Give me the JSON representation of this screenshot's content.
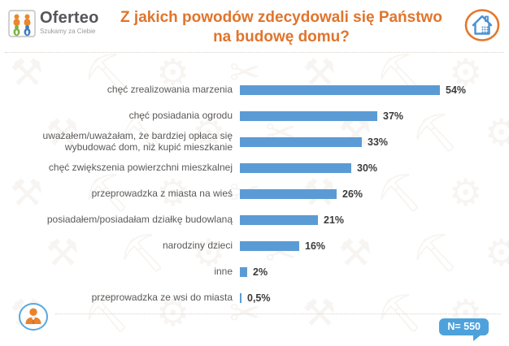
{
  "header": {
    "logo": {
      "brand": "Oferteo",
      "tagline": "Szukamy za Ciebie"
    },
    "title_line1": "Z jakich powodów zdecydowali się Państwo",
    "title_line2": "na budowę domu?"
  },
  "chart_data": {
    "type": "bar",
    "orientation": "horizontal",
    "title": "Z jakich powodów zdecydowali się Państwo na budowę domu?",
    "categories": [
      "chęć zrealizowania marzenia",
      "chęć posiadania ogrodu",
      "uważałem/uważałam, że bardziej opłaca się wybudować dom, niż kupić mieszkanie",
      "chęć zwiększenia powierzchni mieszkalnej",
      "przeprowadzka z miasta na wieś",
      "posiadałem/posiadałam działkę budowlaną",
      "narodziny dzieci",
      "inne",
      "przeprowadzka ze wsi do miasta"
    ],
    "values": [
      54,
      37,
      33,
      30,
      26,
      21,
      16,
      2,
      0.5
    ],
    "value_labels": [
      "54%",
      "37%",
      "33%",
      "30%",
      "26%",
      "21%",
      "16%",
      "2%",
      "0,5%"
    ],
    "xlim": [
      0,
      60
    ],
    "grid": false,
    "legend": false,
    "bar_color": "#5B9BD5",
    "annotations": [
      "N= 550"
    ]
  },
  "footer": {
    "sample_badge": "N= 550"
  },
  "colors": {
    "title_orange": "#e0752d",
    "bar_blue": "#5B9BD5",
    "badge_blue": "#4ea2dc",
    "label_gray": "#595959",
    "house_ring_orange": "#e4772c",
    "house_blue": "#4a90d2",
    "person_ring_blue": "#58a8de",
    "person_orange": "#e8832d"
  },
  "background": {
    "watermark_glyphs": [
      "⚒",
      "⛏",
      "⚙",
      "✂",
      "⚒",
      "⛏",
      "⚙"
    ]
  }
}
